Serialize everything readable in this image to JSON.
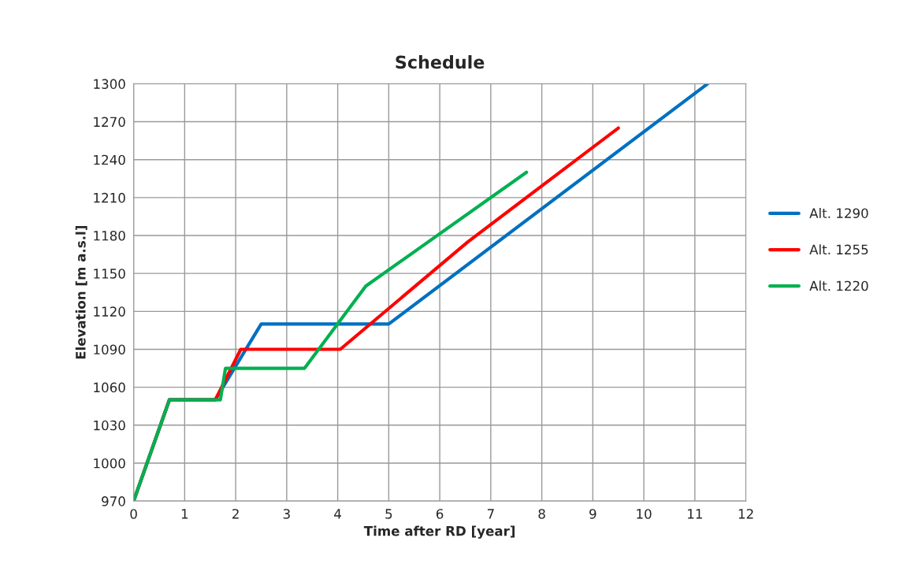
{
  "chart_data": {
    "type": "line",
    "title": "Schedule",
    "xlabel": "Time after RD [year]",
    "ylabel": "Elevation [m a.s.l]",
    "xlim": [
      0,
      12
    ],
    "xticks": [
      0,
      1,
      2,
      3,
      4,
      5,
      6,
      7,
      8,
      9,
      10,
      11,
      12
    ],
    "ylim": [
      970,
      1300
    ],
    "yticks": [
      970,
      1000,
      1030,
      1060,
      1090,
      1120,
      1150,
      1180,
      1210,
      1240,
      1270,
      1300
    ],
    "grid": true,
    "legend": "right",
    "line_style": "solid",
    "marker": "none",
    "series": [
      {
        "name": "Alt. 1290",
        "color": "#0070c0",
        "x": [
          0,
          0.7,
          1.6,
          2.5,
          5.0,
          11.25
        ],
        "values": [
          970,
          1050,
          1050,
          1110,
          1110,
          1300
        ]
      },
      {
        "name": "Alt. 1255",
        "color": "#ff0000",
        "x": [
          0,
          0.7,
          1.6,
          2.1,
          4.05,
          6.55,
          9.5
        ],
        "values": [
          970,
          1050,
          1050,
          1090,
          1090,
          1175,
          1265
        ]
      },
      {
        "name": "Alt. 1220",
        "color": "#00b050",
        "x": [
          0,
          0.7,
          1.7,
          1.8,
          3.35,
          4.55,
          7.7
        ],
        "values": [
          970,
          1050,
          1050,
          1075,
          1075,
          1140,
          1230
        ]
      }
    ]
  }
}
